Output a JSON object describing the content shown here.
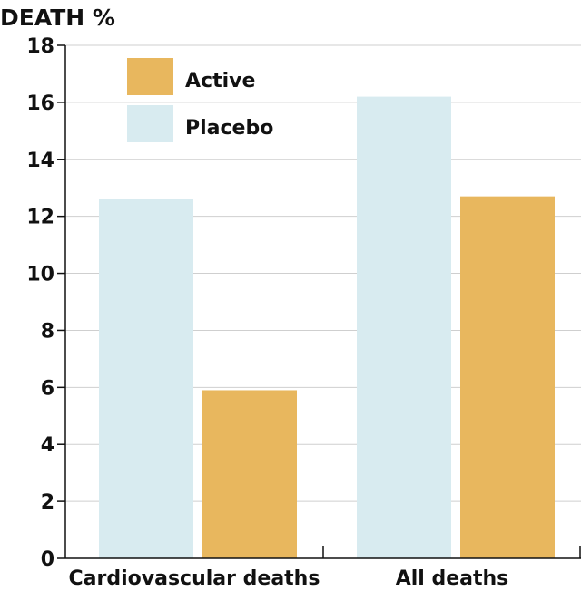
{
  "chart_data": {
    "type": "bar",
    "ylabel": "DEATH %",
    "categories": [
      "Cardiovascular deaths",
      "All deaths"
    ],
    "series": [
      {
        "name": "Placebo",
        "values": [
          12.6,
          16.2
        ],
        "color": "#d8ebf0"
      },
      {
        "name": "Active",
        "values": [
          5.9,
          12.7
        ],
        "color": "#e8b75e"
      }
    ],
    "ylim": [
      0,
      18
    ],
    "yticks": [
      0,
      2,
      4,
      6,
      8,
      10,
      12,
      14,
      16,
      18
    ],
    "grid": true,
    "grid_color": "#cfcfcf",
    "legend": {
      "position": "top-left",
      "order": [
        "Active",
        "Placebo"
      ]
    }
  }
}
